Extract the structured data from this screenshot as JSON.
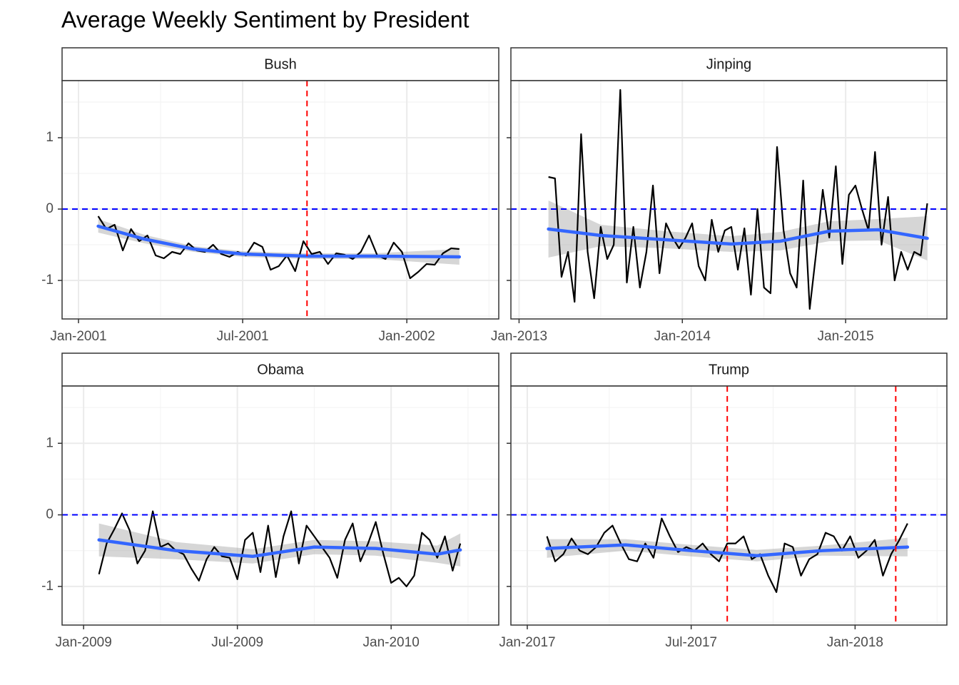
{
  "title": "Average Weekly Sentiment by President",
  "chart_data": [
    {
      "type": "line",
      "title": "Bush",
      "xlim": [
        2000.95,
        2002.28
      ],
      "ylim": [
        -1.54,
        1.8
      ],
      "xticks": [
        {
          "value": 2001,
          "label": "Jan-2001"
        },
        {
          "value": 2001.5,
          "label": "Jul-2001"
        },
        {
          "value": 2002,
          "label": "Jan-2002"
        }
      ],
      "xminor": [
        2001.25,
        2001.75,
        2002.25
      ],
      "yticks": [
        -1,
        0,
        1
      ],
      "yminor": [
        -1.5,
        -0.5,
        0.5,
        1.5
      ],
      "grid": true,
      "x": [
        2001.06,
        2001.085,
        2001.11,
        2001.135,
        2001.16,
        2001.185,
        2001.21,
        2001.235,
        2001.26,
        2001.285,
        2001.31,
        2001.335,
        2001.36,
        2001.385,
        2001.41,
        2001.435,
        2001.46,
        2001.485,
        2001.51,
        2001.535,
        2001.56,
        2001.585,
        2001.61,
        2001.635,
        2001.66,
        2001.685,
        2001.71,
        2001.735,
        2001.76,
        2001.785,
        2001.81,
        2001.835,
        2001.86,
        2001.885,
        2001.91,
        2001.935,
        2001.96,
        2001.985,
        2002.01,
        2002.035,
        2002.06,
        2002.085,
        2002.11,
        2002.135,
        2002.16
      ],
      "series": [
        {
          "color": "#000000",
          "values": [
            -0.1,
            -0.28,
            -0.22,
            -0.58,
            -0.28,
            -0.45,
            -0.37,
            -0.65,
            -0.69,
            -0.6,
            -0.63,
            -0.48,
            -0.58,
            -0.6,
            -0.5,
            -0.63,
            -0.67,
            -0.6,
            -0.65,
            -0.47,
            -0.53,
            -0.85,
            -0.8,
            -0.65,
            -0.87,
            -0.45,
            -0.63,
            -0.6,
            -0.77,
            -0.62,
            -0.64,
            -0.7,
            -0.6,
            -0.37,
            -0.65,
            -0.7,
            -0.47,
            -0.6,
            -0.97,
            -0.88,
            -0.77,
            -0.78,
            -0.62,
            -0.55,
            -0.56
          ]
        }
      ],
      "smooth": {
        "color": "#3366ff",
        "x": [
          2001.06,
          2001.2,
          2001.35,
          2001.5,
          2001.7,
          2001.9,
          2002.16
        ],
        "values": [
          -0.24,
          -0.42,
          -0.56,
          -0.63,
          -0.66,
          -0.66,
          -0.67
        ],
        "lower": [
          -0.33,
          -0.48,
          -0.6,
          -0.67,
          -0.7,
          -0.7,
          -0.78
        ],
        "upper": [
          -0.14,
          -0.36,
          -0.52,
          -0.59,
          -0.62,
          -0.62,
          -0.56
        ]
      },
      "hline": {
        "value": 0,
        "color": "#0000ff"
      },
      "vlines": {
        "values": [
          2001.696
        ],
        "color": "#ff0000"
      }
    },
    {
      "type": "line",
      "title": "Jinping",
      "xlim": [
        2012.95,
        2015.62
      ],
      "ylim": [
        -1.54,
        1.8
      ],
      "xticks": [
        {
          "value": 2013,
          "label": "Jan-2013"
        },
        {
          "value": 2014,
          "label": "Jan-2014"
        },
        {
          "value": 2015,
          "label": "Jan-2015"
        }
      ],
      "xminor": [
        2013.5,
        2014.5,
        2015.5
      ],
      "yticks": [
        -1,
        0,
        1
      ],
      "yminor": [
        -1.5,
        -0.5,
        0.5,
        1.5
      ],
      "grid": true,
      "x": [
        2013.18,
        2013.22,
        2013.26,
        2013.3,
        2013.34,
        2013.38,
        2013.42,
        2013.46,
        2013.5,
        2013.54,
        2013.58,
        2013.62,
        2013.66,
        2013.7,
        2013.74,
        2013.78,
        2013.82,
        2013.86,
        2013.9,
        2013.94,
        2013.98,
        2014.02,
        2014.06,
        2014.1,
        2014.14,
        2014.18,
        2014.22,
        2014.26,
        2014.3,
        2014.34,
        2014.38,
        2014.42,
        2014.46,
        2014.5,
        2014.54,
        2014.58,
        2014.62,
        2014.66,
        2014.7,
        2014.74,
        2014.78,
        2014.82,
        2014.86,
        2014.9,
        2014.94,
        2014.98,
        2015.02,
        2015.06,
        2015.1,
        2015.14,
        2015.18,
        2015.22,
        2015.26,
        2015.3,
        2015.34,
        2015.38,
        2015.42,
        2015.46,
        2015.5
      ],
      "series": [
        {
          "color": "#000000",
          "values": [
            0.45,
            0.43,
            -0.95,
            -0.6,
            -1.3,
            1.05,
            -0.6,
            -1.25,
            -0.25,
            -0.7,
            -0.5,
            1.67,
            -1.03,
            -0.25,
            -1.1,
            -0.6,
            0.33,
            -0.9,
            -0.2,
            -0.4,
            -0.55,
            -0.4,
            -0.2,
            -0.8,
            -1.0,
            -0.15,
            -0.6,
            -0.3,
            -0.25,
            -0.85,
            -0.27,
            -1.2,
            0.0,
            -1.1,
            -1.18,
            0.87,
            -0.3,
            -0.9,
            -1.1,
            0.4,
            -1.4,
            -0.6,
            0.27,
            -0.4,
            0.6,
            -0.77,
            0.2,
            0.33,
            0.0,
            -0.3,
            0.8,
            -0.5,
            0.17,
            -1.0,
            -0.6,
            -0.85,
            -0.6,
            -0.65,
            0.08
          ]
        }
      ],
      "smooth": {
        "color": "#3366ff",
        "x": [
          2013.18,
          2013.5,
          2013.9,
          2014.3,
          2014.6,
          2014.9,
          2015.2,
          2015.5
        ],
        "values": [
          -0.28,
          -0.37,
          -0.43,
          -0.49,
          -0.45,
          -0.31,
          -0.29,
          -0.41
        ],
        "lower": [
          -0.68,
          -0.52,
          -0.55,
          -0.6,
          -0.58,
          -0.45,
          -0.44,
          -0.72
        ],
        "upper": [
          0.12,
          -0.22,
          -0.31,
          -0.38,
          -0.32,
          -0.17,
          -0.14,
          -0.1
        ]
      },
      "hline": {
        "value": 0,
        "color": "#0000ff"
      }
    },
    {
      "type": "line",
      "title": "Obama",
      "xlim": [
        2008.93,
        2010.35
      ],
      "ylim": [
        -1.54,
        1.8
      ],
      "xticks": [
        {
          "value": 2009,
          "label": "Jan-2009"
        },
        {
          "value": 2009.5,
          "label": "Jul-2009"
        },
        {
          "value": 2010,
          "label": "Jan-2010"
        }
      ],
      "xminor": [
        2009.25,
        2009.75,
        2010.25
      ],
      "yticks": [
        -1,
        0,
        1
      ],
      "yminor": [
        -1.5,
        -0.5,
        0.5,
        1.5
      ],
      "grid": true,
      "x": [
        2009.05,
        2009.075,
        2009.1,
        2009.125,
        2009.15,
        2009.175,
        2009.2,
        2009.225,
        2009.25,
        2009.275,
        2009.3,
        2009.325,
        2009.35,
        2009.375,
        2009.4,
        2009.425,
        2009.45,
        2009.475,
        2009.5,
        2009.525,
        2009.55,
        2009.575,
        2009.6,
        2009.625,
        2009.65,
        2009.675,
        2009.7,
        2009.725,
        2009.75,
        2009.775,
        2009.8,
        2009.825,
        2009.85,
        2009.875,
        2009.9,
        2009.925,
        2009.95,
        2009.975,
        2010.0,
        2010.025,
        2010.05,
        2010.075,
        2010.1,
        2010.125,
        2010.15,
        2010.175,
        2010.2,
        2010.225
      ],
      "series": [
        {
          "color": "#000000",
          "values": [
            -0.83,
            -0.4,
            -0.2,
            0.02,
            -0.22,
            -0.68,
            -0.5,
            0.05,
            -0.45,
            -0.4,
            -0.5,
            -0.55,
            -0.75,
            -0.92,
            -0.62,
            -0.45,
            -0.58,
            -0.6,
            -0.9,
            -0.35,
            -0.25,
            -0.8,
            -0.15,
            -0.87,
            -0.3,
            0.05,
            -0.68,
            -0.15,
            -0.3,
            -0.45,
            -0.6,
            -0.88,
            -0.35,
            -0.12,
            -0.65,
            -0.4,
            -0.1,
            -0.55,
            -0.95,
            -0.88,
            -1.0,
            -0.85,
            -0.25,
            -0.35,
            -0.6,
            -0.3,
            -0.78,
            -0.4
          ]
        }
      ],
      "smooth": {
        "color": "#3366ff",
        "x": [
          2009.05,
          2009.3,
          2009.55,
          2009.75,
          2009.95,
          2010.15,
          2010.225
        ],
        "values": [
          -0.35,
          -0.5,
          -0.58,
          -0.45,
          -0.47,
          -0.55,
          -0.49
        ],
        "lower": [
          -0.58,
          -0.62,
          -0.68,
          -0.55,
          -0.57,
          -0.67,
          -0.72
        ],
        "upper": [
          -0.12,
          -0.38,
          -0.48,
          -0.35,
          -0.37,
          -0.43,
          -0.26
        ]
      },
      "hline": {
        "value": 0,
        "color": "#0000ff"
      }
    },
    {
      "type": "line",
      "title": "Trump",
      "xlim": [
        2016.95,
        2018.28
      ],
      "ylim": [
        -1.54,
        1.8
      ],
      "xticks": [
        {
          "value": 2017,
          "label": "Jan-2017"
        },
        {
          "value": 2017.5,
          "label": "Jul-2017"
        },
        {
          "value": 2018,
          "label": "Jan-2018"
        }
      ],
      "xminor": [
        2017.25,
        2017.75,
        2018.25
      ],
      "yticks": [
        -1,
        0,
        1
      ],
      "yminor": [
        -1.5,
        -0.5,
        0.5,
        1.5
      ],
      "grid": true,
      "x": [
        2017.06,
        2017.085,
        2017.11,
        2017.135,
        2017.16,
        2017.185,
        2017.21,
        2017.235,
        2017.26,
        2017.285,
        2017.31,
        2017.335,
        2017.36,
        2017.385,
        2017.41,
        2017.435,
        2017.46,
        2017.485,
        2017.51,
        2017.535,
        2017.56,
        2017.585,
        2017.61,
        2017.635,
        2017.66,
        2017.685,
        2017.71,
        2017.735,
        2017.76,
        2017.785,
        2017.81,
        2017.835,
        2017.86,
        2017.885,
        2017.91,
        2017.935,
        2017.96,
        2017.985,
        2018.01,
        2018.035,
        2018.06,
        2018.085,
        2018.11,
        2018.135,
        2018.16
      ],
      "series": [
        {
          "color": "#000000",
          "values": [
            -0.3,
            -0.65,
            -0.55,
            -0.33,
            -0.5,
            -0.55,
            -0.45,
            -0.25,
            -0.15,
            -0.4,
            -0.62,
            -0.65,
            -0.4,
            -0.6,
            -0.05,
            -0.3,
            -0.52,
            -0.45,
            -0.5,
            -0.4,
            -0.55,
            -0.65,
            -0.4,
            -0.4,
            -0.3,
            -0.62,
            -0.55,
            -0.85,
            -1.08,
            -0.4,
            -0.45,
            -0.85,
            -0.62,
            -0.55,
            -0.25,
            -0.3,
            -0.5,
            -0.3,
            -0.6,
            -0.5,
            -0.35,
            -0.85,
            -0.55,
            -0.35,
            -0.12
          ]
        }
      ],
      "smooth": {
        "color": "#3366ff",
        "x": [
          2017.06,
          2017.3,
          2017.5,
          2017.7,
          2017.9,
          2018.16
        ],
        "values": [
          -0.47,
          -0.42,
          -0.5,
          -0.57,
          -0.5,
          -0.45
        ],
        "lower": [
          -0.6,
          -0.5,
          -0.58,
          -0.65,
          -0.57,
          -0.58
        ],
        "upper": [
          -0.34,
          -0.34,
          -0.42,
          -0.49,
          -0.43,
          -0.32
        ]
      },
      "hline": {
        "value": 0,
        "color": "#0000ff"
      },
      "vlines": {
        "values": [
          2017.61,
          2018.124
        ],
        "color": "#ff0000"
      }
    }
  ]
}
